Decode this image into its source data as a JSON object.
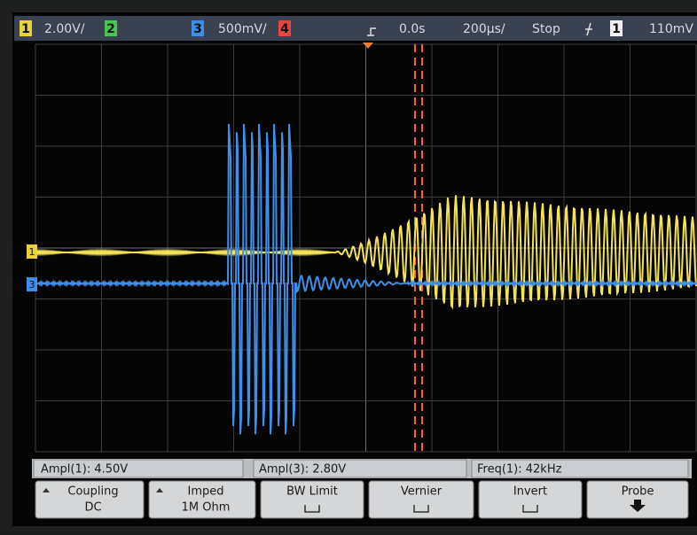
{
  "status_bar": {
    "ch1_label": "1",
    "ch1_scale": "2.00V/",
    "ch2_label": "2",
    "ch3_label": "3",
    "ch3_scale": "500mV/",
    "ch4_label": "4",
    "time_offset": "0.0s",
    "time_scale": "200µs/",
    "run_state": "Stop",
    "trigger_source": "1",
    "trigger_level": "110mV"
  },
  "trace_markers": [
    "1",
    "3"
  ],
  "measurements": [
    "Ampl(1): 4.50V",
    "Ampl(3): 2.80V",
    "Freq(1): 42kHz"
  ],
  "softkeys": [
    {
      "label": "Coupling",
      "value": "DC"
    },
    {
      "label": "Imped",
      "value": "1M Ohm"
    },
    {
      "label": "BW Limit"
    },
    {
      "label": "Vernier"
    },
    {
      "label": "Invert"
    },
    {
      "label": "Probe"
    }
  ]
}
